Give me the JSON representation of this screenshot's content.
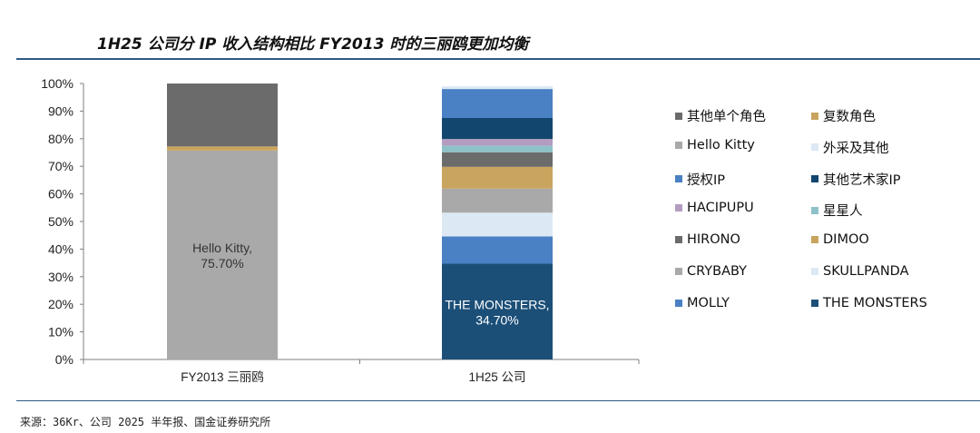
{
  "title": "1H25 公司分 IP 收入结构相比 FY2013 时的三丽鸥更加均衡",
  "source": "来源：36Kr、公司 2025 半年报、国金证券研究所",
  "chart_data": {
    "type": "bar",
    "stacked": true,
    "categories": [
      "FY2013 三丽鸥",
      "1H25 公司"
    ],
    "ylim": [
      0,
      100
    ],
    "yticks": [
      "0%",
      "10%",
      "20%",
      "30%",
      "40%",
      "50%",
      "60%",
      "70%",
      "80%",
      "90%",
      "100%"
    ],
    "grid": false,
    "legend_position": "right",
    "series": [
      {
        "name": "THE MONSTERS",
        "color": "#1c4f78",
        "values": [
          0,
          34.7
        ]
      },
      {
        "name": "MOLLY",
        "color": "#4a80c4",
        "values": [
          0,
          9.9
        ]
      },
      {
        "name": "SKULLPANDA",
        "color": "#dce9f5",
        "values": [
          0,
          8.6
        ]
      },
      {
        "name": "CRYBABY",
        "color": "#a9a9a9",
        "values": [
          0,
          8.7
        ]
      },
      {
        "name": "DIMOO",
        "color": "#c9a45e",
        "values": [
          0,
          7.9
        ]
      },
      {
        "name": "HIRONO",
        "color": "#6b6b6b",
        "values": [
          0,
          5.3
        ]
      },
      {
        "name": "星星人",
        "color": "#8dc3c8",
        "values": [
          0,
          2.4
        ]
      },
      {
        "name": "HACIPUPU",
        "color": "#b49cc1",
        "values": [
          0,
          2.4
        ]
      },
      {
        "name": "其他艺术家IP",
        "color": "#12466e",
        "values": [
          0,
          7.6
        ]
      },
      {
        "name": "授权IP",
        "color": "#4a80c4",
        "values": [
          0,
          10.5
        ]
      },
      {
        "name": "外采及其他",
        "color": "#dce9f5",
        "values": [
          0,
          1.0
        ]
      },
      {
        "name": "Hello Kitty",
        "color": "#a9a9a9",
        "values": [
          75.7,
          0
        ]
      },
      {
        "name": "复数角色",
        "color": "#c9a45e",
        "values": [
          1.5,
          0
        ]
      },
      {
        "name": "其他单个角色",
        "color": "#6b6b6b",
        "values": [
          22.8,
          0
        ]
      }
    ],
    "data_labels": [
      {
        "text": "Hello Kitty,\n75.70%",
        "category": 0,
        "series": "Hello Kitty"
      },
      {
        "text": "THE MONSTERS,\n34.70%",
        "category": 1,
        "series": "THE MONSTERS"
      }
    ],
    "legend": [
      {
        "name": "其他单个角色",
        "color": "#6b6b6b"
      },
      {
        "name": "复数角色",
        "color": "#c9a45e"
      },
      {
        "name": "Hello Kitty",
        "color": "#a9a9a9"
      },
      {
        "name": "外采及其他",
        "color": "#dce9f5"
      },
      {
        "name": "授权IP",
        "color": "#4a80c4"
      },
      {
        "name": "其他艺术家IP",
        "color": "#12466e"
      },
      {
        "name": "HACIPUPU",
        "color": "#b49cc1"
      },
      {
        "name": "星星人",
        "color": "#8dc3c8"
      },
      {
        "name": "HIRONO",
        "color": "#6b6b6b"
      },
      {
        "name": "DIMOO",
        "color": "#c9a45e"
      },
      {
        "name": "CRYBABY",
        "color": "#a9a9a9"
      },
      {
        "name": "SKULLPANDA",
        "color": "#dce9f5"
      },
      {
        "name": "MOLLY",
        "color": "#4a80c4"
      },
      {
        "name": "THE MONSTERS",
        "color": "#1c4f78"
      }
    ]
  }
}
